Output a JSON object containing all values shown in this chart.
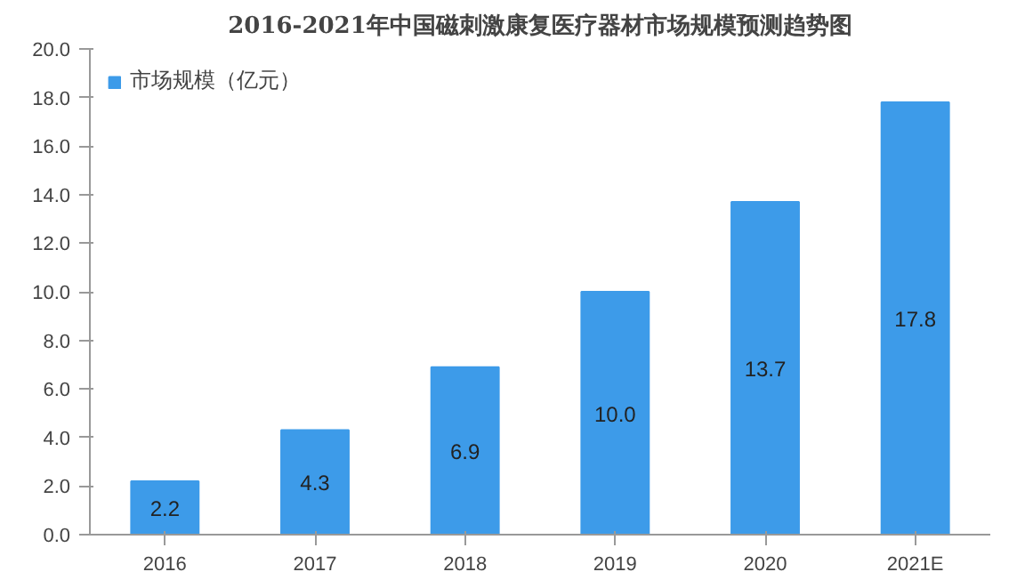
{
  "chart_data": {
    "type": "bar",
    "title": "2016-2021年中国磁刺激康复医疗器材市场规模预测趋势图",
    "categories": [
      "2016",
      "2017",
      "2018",
      "2019",
      "2020",
      "2021E"
    ],
    "series": [
      {
        "name": "市场规模（亿元）",
        "color": "#3d9be9",
        "values": [
          2.2,
          4.3,
          6.9,
          10.0,
          13.7,
          17.8
        ]
      }
    ],
    "value_labels": [
      "2.2",
      "4.3",
      "6.9",
      "10.0",
      "13.7",
      "17.8"
    ],
    "ylim": [
      0,
      20
    ],
    "yticks": [
      {
        "value": 0,
        "label": "0.0"
      },
      {
        "value": 2,
        "label": "2.0"
      },
      {
        "value": 4,
        "label": "4.0"
      },
      {
        "value": 6,
        "label": "6.0"
      },
      {
        "value": 8,
        "label": "8.0"
      },
      {
        "value": 10,
        "label": "10.0"
      },
      {
        "value": 12,
        "label": "12.0"
      },
      {
        "value": 14,
        "label": "14.0"
      },
      {
        "value": 16,
        "label": "16.0"
      },
      {
        "value": 18,
        "label": "18.0"
      },
      {
        "value": 20,
        "label": "20.0"
      }
    ],
    "grid": false,
    "legend": "top left"
  }
}
